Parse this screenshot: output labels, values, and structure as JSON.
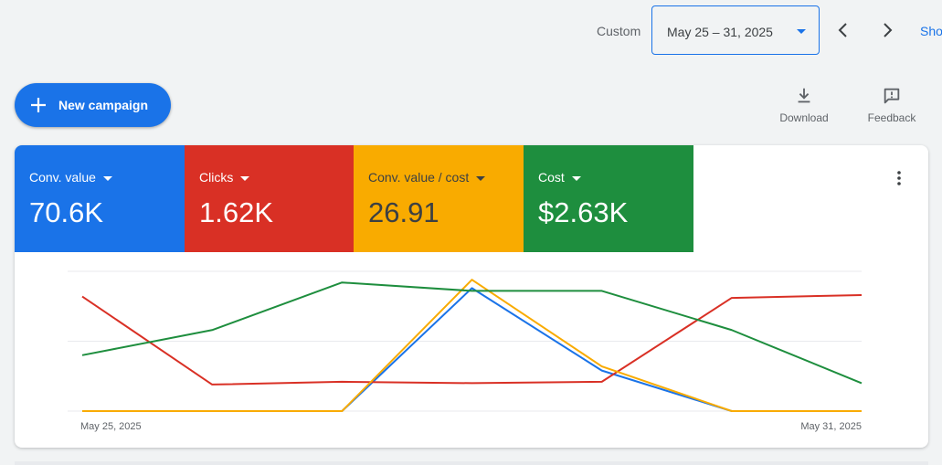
{
  "date": {
    "label": "Custom",
    "range": "May 25 – 31, 2025",
    "show_link": "Sho"
  },
  "actions": {
    "new_campaign": "New campaign",
    "download": "Download",
    "feedback": "Feedback"
  },
  "metrics": [
    {
      "label": "Conv. value",
      "value": "70.6K",
      "color": "#1a73e8"
    },
    {
      "label": "Clicks",
      "value": "1.62K",
      "color": "#d93025"
    },
    {
      "label": "Conv. value / cost",
      "value": "26.91",
      "color": "#f9ab00"
    },
    {
      "label": "Cost",
      "value": "$2.63K",
      "color": "#1e8e3e"
    }
  ],
  "chart_data": {
    "type": "line",
    "x": [
      "May 25, 2025",
      "May 26, 2025",
      "May 27, 2025",
      "May 28, 2025",
      "May 29, 2025",
      "May 30, 2025",
      "May 31, 2025"
    ],
    "x_tick_labels": [
      "May 25, 2025",
      "May 31, 2025"
    ],
    "ylim": [
      0,
      100
    ],
    "grid": true,
    "series": [
      {
        "color": "#1a73e8",
        "values": [
          0,
          0,
          0,
          88,
          29,
          0,
          0
        ]
      },
      {
        "color": "#d93025",
        "values": [
          82,
          19,
          21,
          20,
          21,
          81,
          83
        ]
      },
      {
        "color": "#f9ab00",
        "values": [
          0,
          0,
          0,
          94,
          32,
          0,
          0
        ]
      },
      {
        "color": "#1e8e3e",
        "values": [
          40,
          58,
          92,
          86,
          86,
          58,
          20
        ]
      }
    ]
  }
}
